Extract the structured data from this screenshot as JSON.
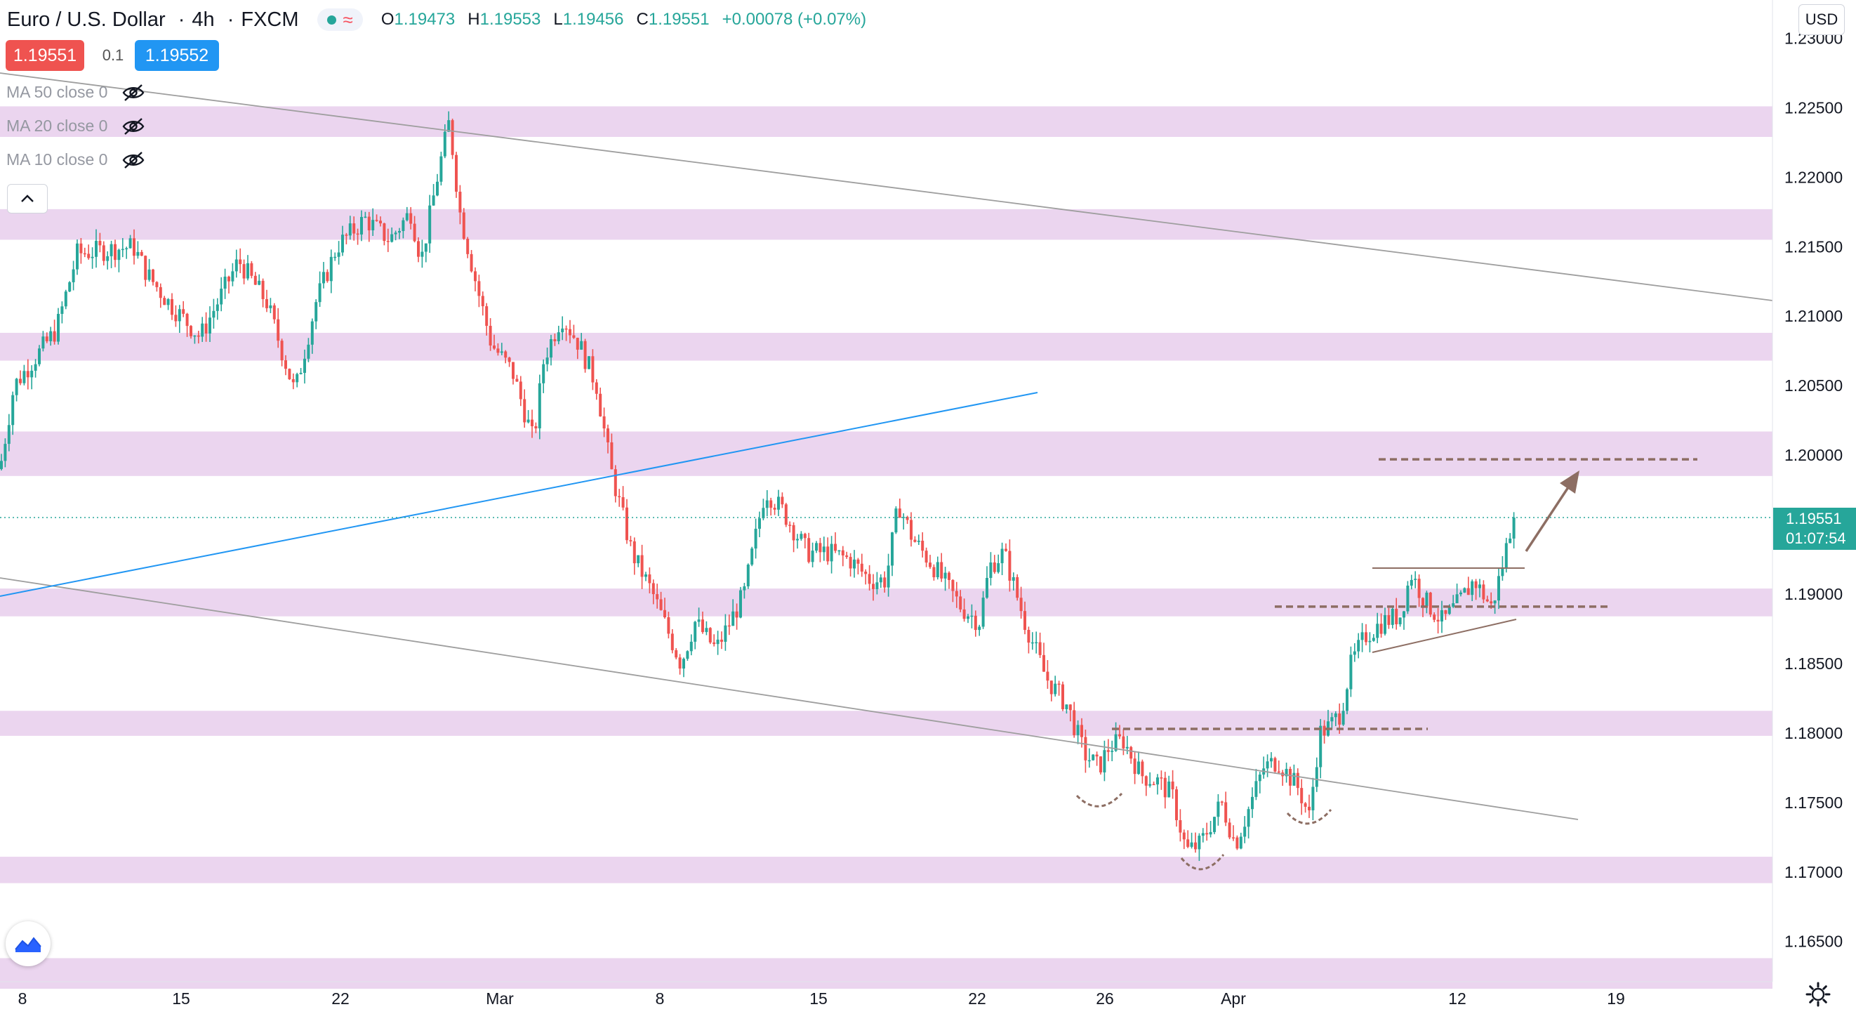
{
  "header": {
    "symbol_title": "Euro / U.S. Dollar",
    "interval": "4h",
    "exchange": "FXCM",
    "open_label": "O",
    "open": "1.19473",
    "high_label": "H",
    "high": "1.19553",
    "low_label": "L",
    "low": "1.19456",
    "close_label": "C",
    "close": "1.19551",
    "change": "+0.00078 (+0.07%)"
  },
  "quote": {
    "sell_price": "1.19551",
    "spread": "0.1",
    "buy_price": "1.19552",
    "sell_color": "#ef5350",
    "buy_color": "#2196f3"
  },
  "indicators": [
    {
      "label": "MA 50 close 0",
      "icon": "eye-off-icon"
    },
    {
      "label": "MA 20 close 0",
      "icon": "eye-off-icon"
    },
    {
      "label": "MA 10 close 0",
      "icon": "eye-off-icon"
    }
  ],
  "currency_button": "USD",
  "last_price": {
    "price": "1.19551",
    "countdown": "01:07:54",
    "color": "#26a69a"
  },
  "chart_data": {
    "type": "candlestick",
    "y_axis": {
      "range": [
        1.1615,
        1.2325
      ],
      "ticks": [
        "1.23000",
        "1.22500",
        "1.22000",
        "1.21500",
        "1.21000",
        "1.20500",
        "1.20000",
        "1.19500",
        "1.19000",
        "1.18500",
        "1.18000",
        "1.17500",
        "1.17000",
        "1.16500"
      ],
      "side": "right"
    },
    "x_axis": {
      "ticks": [
        "8",
        "15",
        "22",
        "Mar",
        "8",
        "15",
        "22",
        "26",
        "Apr",
        "12",
        "19"
      ]
    },
    "colors": {
      "up": "#26a69a",
      "down": "#ef5350",
      "zone": "#e1bee7",
      "trendline": "#9e9e9e",
      "ma_line": "#2196f3",
      "annotation": "#8d6e63"
    },
    "zones": [
      [
        1.2229,
        1.2251
      ],
      [
        1.2155,
        1.2177
      ],
      [
        1.2068,
        1.2088
      ],
      [
        1.1985,
        1.2017
      ],
      [
        1.1884,
        1.1904
      ],
      [
        1.1798,
        1.1816
      ],
      [
        1.1692,
        1.1711
      ],
      [
        1.1616,
        1.1638
      ]
    ],
    "key_levels": [
      {
        "price": 1.1997,
        "style": "dashed"
      },
      {
        "price": 1.1891,
        "style": "dashed"
      },
      {
        "price": 1.1803,
        "style": "dashed"
      }
    ],
    "path_waypoints": [
      [
        0,
        1.199
      ],
      [
        20,
        1.205
      ],
      [
        80,
        1.209
      ],
      [
        110,
        1.2145
      ],
      [
        190,
        1.215
      ],
      [
        210,
        1.213
      ],
      [
        240,
        1.211
      ],
      [
        285,
        1.2085
      ],
      [
        310,
        1.211
      ],
      [
        340,
        1.214
      ],
      [
        380,
        1.211
      ],
      [
        420,
        1.2045
      ],
      [
        450,
        1.211
      ],
      [
        480,
        1.215
      ],
      [
        520,
        1.217
      ],
      [
        555,
        1.2155
      ],
      [
        585,
        1.2175
      ],
      [
        600,
        1.214
      ],
      [
        625,
        1.2205
      ],
      [
        640,
        1.224
      ],
      [
        655,
        1.2175
      ],
      [
        680,
        1.212
      ],
      [
        700,
        1.208
      ],
      [
        730,
        1.206
      ],
      [
        760,
        1.201
      ],
      [
        775,
        1.207
      ],
      [
        800,
        1.21
      ],
      [
        825,
        1.208
      ],
      [
        850,
        1.205
      ],
      [
        870,
        1.199
      ],
      [
        900,
        1.193
      ],
      [
        930,
        1.19
      ],
      [
        970,
        1.185
      ],
      [
        990,
        1.188
      ],
      [
        1020,
        1.186
      ],
      [
        1060,
        1.19
      ],
      [
        1090,
        1.1975
      ],
      [
        1115,
        1.196
      ],
      [
        1150,
        1.193
      ],
      [
        1180,
        1.193
      ],
      [
        1210,
        1.1925
      ],
      [
        1240,
        1.191
      ],
      [
        1262,
        1.191
      ],
      [
        1280,
        1.1965
      ],
      [
        1300,
        1.194
      ],
      [
        1330,
        1.192
      ],
      [
        1370,
        1.189
      ],
      [
        1395,
        1.188
      ],
      [
        1410,
        1.192
      ],
      [
        1430,
        1.193
      ],
      [
        1460,
        1.188
      ],
      [
        1490,
        1.184
      ],
      [
        1520,
        1.182
      ],
      [
        1545,
        1.1785
      ],
      [
        1565,
        1.1775
      ],
      [
        1580,
        1.179
      ],
      [
        1600,
        1.1795
      ],
      [
        1625,
        1.177
      ],
      [
        1650,
        1.1765
      ],
      [
        1670,
        1.1755
      ],
      [
        1690,
        1.1715
      ],
      [
        1710,
        1.172
      ],
      [
        1740,
        1.175
      ],
      [
        1760,
        1.172
      ],
      [
        1775,
        1.174
      ],
      [
        1800,
        1.1775
      ],
      [
        1820,
        1.178
      ],
      [
        1850,
        1.176
      ],
      [
        1865,
        1.174
      ],
      [
        1880,
        1.18
      ],
      [
        1895,
        1.1805
      ],
      [
        1910,
        1.1815
      ],
      [
        1925,
        1.185
      ],
      [
        1945,
        1.187
      ],
      [
        1970,
        1.188
      ],
      [
        1995,
        1.1885
      ],
      [
        2010,
        1.1915
      ],
      [
        2030,
        1.1895
      ],
      [
        2055,
        1.188
      ],
      [
        2080,
        1.1895
      ],
      [
        2100,
        1.191
      ],
      [
        2125,
        1.189
      ],
      [
        2140,
        1.192
      ],
      [
        2155,
        1.1955
      ]
    ]
  }
}
